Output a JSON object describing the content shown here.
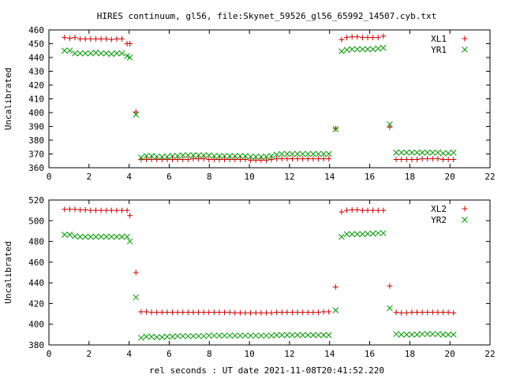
{
  "figure": {
    "title": "HIRES continuum, gl56, file:Skynet_59526_gl56_65992_14507.cyb.txt",
    "xlabel": "rel seconds : UT date 2021-11-08T20:41:52.220"
  },
  "chart_data": [
    {
      "type": "scatter",
      "title": "",
      "xlabel": "",
      "ylabel": "Uncalibrated",
      "xlim": [
        0,
        22
      ],
      "ylim": [
        360,
        460
      ],
      "xticks": [
        "0",
        "2",
        "4",
        "6",
        "8",
        "10",
        "12",
        "14",
        "16",
        "18",
        "20",
        "22"
      ],
      "yticks": [
        "360",
        "370",
        "380",
        "390",
        "400",
        "410",
        "420",
        "430",
        "440",
        "450",
        "460"
      ],
      "grid": false,
      "legend_position": "top-right",
      "series": [
        {
          "name": "XL1",
          "marker": "plus",
          "color": "#cc0000",
          "x": [
            0.78,
            1.04,
            1.3,
            1.56,
            1.82,
            2.08,
            2.34,
            2.6,
            2.86,
            3.12,
            3.38,
            3.64,
            3.9,
            4.04,
            4.34,
            4.6,
            4.86,
            5.12,
            5.38,
            5.64,
            5.9,
            6.16,
            6.42,
            6.68,
            6.94,
            7.2,
            7.46,
            7.72,
            7.98,
            8.24,
            8.5,
            8.76,
            9.02,
            9.28,
            9.54,
            9.8,
            10.06,
            10.32,
            10.58,
            10.84,
            11.1,
            11.36,
            11.62,
            11.88,
            12.14,
            12.4,
            12.66,
            12.92,
            13.18,
            13.44,
            13.7,
            13.96,
            14.3,
            14.6,
            14.86,
            15.12,
            15.38,
            15.64,
            15.9,
            16.16,
            16.42,
            16.68,
            17.0,
            17.32,
            17.58,
            17.84,
            18.1,
            18.36,
            18.62,
            18.88,
            19.14,
            19.4,
            19.66,
            19.92,
            20.18
          ],
          "y": [
            454.5,
            454,
            454.5,
            453.5,
            453.5,
            453.5,
            453.5,
            453.5,
            453.5,
            453,
            453.5,
            453.5,
            450,
            450,
            400.5,
            366,
            366,
            366,
            366,
            366,
            366,
            366,
            366,
            366,
            366,
            366.5,
            366.5,
            366.5,
            366,
            366,
            366,
            366,
            366,
            366,
            366,
            366,
            365.5,
            365.5,
            365.5,
            365.5,
            366,
            366.5,
            366.5,
            366.5,
            366.5,
            366.5,
            366.5,
            366.5,
            366.5,
            366.5,
            366.5,
            366.5,
            388.5,
            453,
            454.5,
            455,
            455,
            454.5,
            454.5,
            454.5,
            454.5,
            455.5,
            389.5,
            366,
            366,
            366,
            366,
            366,
            366.5,
            366.5,
            366.5,
            366.5,
            366,
            366,
            366
          ]
        },
        {
          "name": "YR1",
          "marker": "cross",
          "color": "#009900",
          "x": [
            0.78,
            1.04,
            1.3,
            1.56,
            1.82,
            2.08,
            2.34,
            2.6,
            2.86,
            3.12,
            3.38,
            3.64,
            3.9,
            4.04,
            4.34,
            4.6,
            4.86,
            5.12,
            5.38,
            5.64,
            5.9,
            6.16,
            6.42,
            6.68,
            6.94,
            7.2,
            7.46,
            7.72,
            7.98,
            8.24,
            8.5,
            8.76,
            9.02,
            9.28,
            9.54,
            9.8,
            10.06,
            10.32,
            10.58,
            10.84,
            11.1,
            11.36,
            11.62,
            11.88,
            12.14,
            12.4,
            12.66,
            12.92,
            13.18,
            13.44,
            13.7,
            13.96,
            14.3,
            14.6,
            14.86,
            15.12,
            15.38,
            15.64,
            15.9,
            16.16,
            16.42,
            16.68,
            17.0,
            17.32,
            17.58,
            17.84,
            18.1,
            18.36,
            18.62,
            18.88,
            19.14,
            19.4,
            19.66,
            19.92,
            20.18
          ],
          "y": [
            445,
            445,
            443,
            443,
            443,
            443,
            443.5,
            443,
            443,
            442.5,
            443,
            443,
            441,
            440,
            398.5,
            367.5,
            368.5,
            368.5,
            368,
            368,
            368,
            368.5,
            368.5,
            369,
            369,
            369,
            369,
            369,
            369,
            368.5,
            368.5,
            368.5,
            368.5,
            368.5,
            368.5,
            368.5,
            368,
            368,
            368,
            368,
            368.5,
            369.5,
            370,
            370,
            370,
            370,
            370,
            370,
            370,
            370,
            370,
            370,
            388,
            444.5,
            445.5,
            446,
            446,
            446,
            446,
            446,
            446.5,
            447,
            391.5,
            371,
            371,
            371,
            371,
            371,
            371,
            371,
            371,
            371,
            370.5,
            370.5,
            371
          ]
        }
      ]
    },
    {
      "type": "scatter",
      "title": "",
      "xlabel": "rel seconds : UT date 2021-11-08T20:41:52.220",
      "ylabel": "Uncalibrated",
      "xlim": [
        0,
        22
      ],
      "ylim": [
        380,
        520
      ],
      "xticks": [
        "0",
        "2",
        "4",
        "6",
        "8",
        "10",
        "12",
        "14",
        "16",
        "18",
        "20",
        "22"
      ],
      "yticks": [
        "380",
        "400",
        "420",
        "440",
        "460",
        "480",
        "500",
        "520"
      ],
      "grid": false,
      "legend_position": "top-right",
      "series": [
        {
          "name": "XL2",
          "marker": "plus",
          "color": "#cc0000",
          "x": [
            0.78,
            1.04,
            1.3,
            1.56,
            1.82,
            2.08,
            2.34,
            2.6,
            2.86,
            3.12,
            3.38,
            3.64,
            3.9,
            4.04,
            4.34,
            4.6,
            4.86,
            5.12,
            5.38,
            5.64,
            5.9,
            6.16,
            6.42,
            6.68,
            6.94,
            7.2,
            7.46,
            7.72,
            7.98,
            8.24,
            8.5,
            8.76,
            9.02,
            9.28,
            9.54,
            9.8,
            10.06,
            10.32,
            10.58,
            10.84,
            11.1,
            11.36,
            11.62,
            11.88,
            12.14,
            12.4,
            12.66,
            12.92,
            13.18,
            13.44,
            13.7,
            13.96,
            14.3,
            14.6,
            14.86,
            15.12,
            15.38,
            15.64,
            15.9,
            16.16,
            16.42,
            16.68,
            17.0,
            17.32,
            17.58,
            17.84,
            18.1,
            18.36,
            18.62,
            18.88,
            19.14,
            19.4,
            19.66,
            19.92,
            20.18
          ],
          "y": [
            511,
            511,
            511,
            510.5,
            510.5,
            510,
            510,
            510,
            510,
            510,
            510,
            510,
            510,
            505,
            450,
            412,
            412,
            411.5,
            411.5,
            411.5,
            411.5,
            411.5,
            411.5,
            411.5,
            411.5,
            411.5,
            411.5,
            411.5,
            411.5,
            411.5,
            411.5,
            411.5,
            411.5,
            411,
            411,
            411,
            411,
            411,
            411,
            411,
            411,
            411.5,
            411.5,
            411.5,
            411.5,
            411.5,
            411.5,
            411.5,
            411.5,
            411.5,
            412,
            412,
            436,
            508.5,
            510,
            510.5,
            510.5,
            510,
            510,
            510,
            510,
            510,
            437,
            411.5,
            411,
            411,
            411.5,
            411.5,
            411.5,
            411.5,
            411.5,
            411.5,
            411.5,
            411.5,
            411
          ]
        },
        {
          "name": "YR2",
          "marker": "cross",
          "color": "#009900",
          "x": [
            0.78,
            1.04,
            1.3,
            1.56,
            1.82,
            2.08,
            2.34,
            2.6,
            2.86,
            3.12,
            3.38,
            3.64,
            3.9,
            4.04,
            4.34,
            4.6,
            4.86,
            5.12,
            5.38,
            5.64,
            5.9,
            6.16,
            6.42,
            6.68,
            6.94,
            7.2,
            7.46,
            7.72,
            7.98,
            8.24,
            8.5,
            8.76,
            9.02,
            9.28,
            9.54,
            9.8,
            10.06,
            10.32,
            10.58,
            10.84,
            11.1,
            11.36,
            11.62,
            11.88,
            12.14,
            12.4,
            12.66,
            12.92,
            13.18,
            13.44,
            13.7,
            13.96,
            14.3,
            14.6,
            14.86,
            15.12,
            15.38,
            15.64,
            15.9,
            16.16,
            16.42,
            16.68,
            17.0,
            17.32,
            17.58,
            17.84,
            18.1,
            18.36,
            18.62,
            18.88,
            19.14,
            19.4,
            19.66,
            19.92,
            20.18
          ],
          "y": [
            486.5,
            486.5,
            485,
            484.5,
            484.5,
            484.5,
            484.5,
            484.5,
            484.5,
            484.5,
            484.5,
            484.5,
            484.5,
            480,
            426,
            387,
            388,
            388,
            387.5,
            387.5,
            388,
            388,
            388.5,
            388.5,
            388.5,
            388.5,
            388.5,
            388.5,
            389,
            389,
            389,
            389,
            389,
            389,
            389,
            389,
            389,
            389,
            389,
            389,
            389,
            389.5,
            389.5,
            389.5,
            389.5,
            389.5,
            389.5,
            389.5,
            389.5,
            389.5,
            389.5,
            389.5,
            413.5,
            484.5,
            487,
            487,
            487,
            487,
            487.5,
            487.5,
            488,
            488,
            415.5,
            390.5,
            390,
            390,
            390,
            390,
            390.5,
            390.5,
            390.5,
            390.5,
            390,
            390,
            390
          ]
        }
      ]
    }
  ]
}
